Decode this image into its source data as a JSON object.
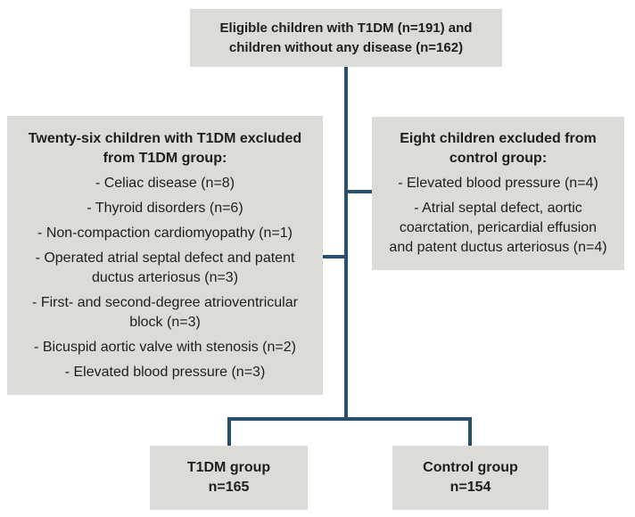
{
  "colors": {
    "background": "#ffffff",
    "box_fill": "#dcdbd8",
    "text": "#1e1e1c",
    "connector_line": "#27506f"
  },
  "boxes": {
    "eligible": {
      "text": "Eligible children with T1DM (n=191) and\nchildren without any disease (n=162)"
    },
    "t1dm_excluded": {
      "heading": "Twenty-six children with T1DM excluded\nfrom T1DM group:",
      "items": [
        "- Celiac disease (n=8)",
        "- Thyroid disorders (n=6)",
        "- Non-compaction cardiomyopathy (n=1)",
        "- Operated atrial septal defect and patent\nductus arteriosus (n=3)",
        "- First- and second-degree atrioventricular\nblock (n=3)",
        "- Bicuspid aortic valve with stenosis (n=2)",
        "- Elevated blood pressure (n=3)"
      ]
    },
    "control_excluded": {
      "heading": "Eight children excluded from\ncontrol group:",
      "items": [
        "- Elevated blood pressure (n=4)",
        "- Atrial septal defect, aortic\ncoarctation, pericardial effusion\nand patent ductus arteriosus (n=4)"
      ]
    },
    "t1dm_group": {
      "text": "T1DM group\nn=165"
    },
    "control_group": {
      "text": "Control group\nn=154"
    }
  }
}
